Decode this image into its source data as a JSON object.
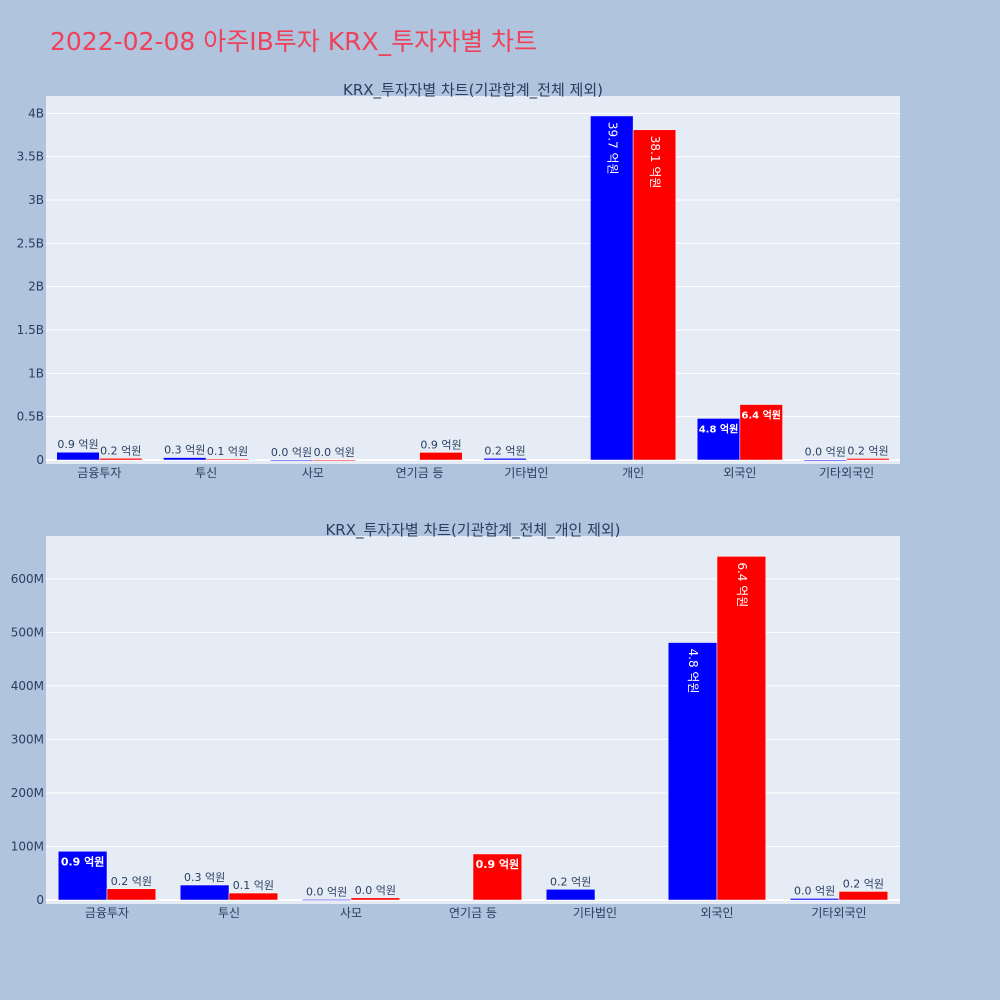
{
  "page": {
    "title": "2022-02-08 아주IB투자 KRX_투자자별 차트"
  },
  "colors": {
    "background": "#b0c4de",
    "plot_bg": "#e5ecf6",
    "series_a": "#0000ff",
    "series_b": "#ff0000",
    "title": "#ef4159"
  },
  "chart_data": [
    {
      "type": "bar",
      "title": "KRX_투자자별 차트(기관합계_전체 제외)",
      "categories": [
        "금융투자",
        "투신",
        "사모",
        "연기금 등",
        "기타법인",
        "개인",
        "외국인",
        "기타외국인"
      ],
      "ylim": [
        0,
        4200000000
      ],
      "yticks": [
        0,
        500000000,
        1000000000,
        1500000000,
        2000000000,
        2500000000,
        3000000000,
        3500000000,
        4000000000
      ],
      "ytick_labels": [
        "0",
        "0.5B",
        "1B",
        "1.5B",
        "2B",
        "2.5B",
        "3B",
        "3.5B",
        "4B"
      ],
      "series": [
        {
          "color": "#0000ff",
          "values": [
            90000000,
            28000000,
            1000000,
            0,
            20000000,
            3970000000,
            480000000,
            3000000
          ],
          "labels": [
            "0.9 억원",
            "0.3 억원",
            "0.0 억원",
            "",
            "0.2 억원",
            "39.7 억원",
            "4.8 억원",
            "0.0 억원"
          ]
        },
        {
          "color": "#ff0000",
          "values": [
            20000000,
            12000000,
            2000000,
            88000000,
            0,
            3810000000,
            640000000,
            18000000
          ],
          "labels": [
            "0.2 억원",
            "0.1 억원",
            "0.0 억원",
            "0.9 억원",
            "",
            "38.1 억원",
            "6.4 억원",
            "0.2 억원"
          ]
        }
      ],
      "grid": true
    },
    {
      "type": "bar",
      "title": "KRX_투자자별 차트(기관합계_전체_개인 제외)",
      "categories": [
        "금융투자",
        "투신",
        "사모",
        "연기금 등",
        "기타법인",
        "외국인",
        "기타외국인"
      ],
      "ylim": [
        0,
        680000000
      ],
      "yticks": [
        0,
        100000000,
        200000000,
        300000000,
        400000000,
        500000000,
        600000000
      ],
      "ytick_labels": [
        "0",
        "100M",
        "200M",
        "300M",
        "400M",
        "500M",
        "600M"
      ],
      "series": [
        {
          "color": "#0000ff",
          "values": [
            91000000,
            28000000,
            1000000,
            0,
            20000000,
            481000000,
            3000000
          ],
          "labels": [
            "0.9 억원",
            "0.3 억원",
            "0.0 억원",
            "",
            "0.2 억원",
            "4.8 억원",
            "0.0 억원"
          ]
        },
        {
          "color": "#ff0000",
          "values": [
            21000000,
            13000000,
            4000000,
            86000000,
            0,
            642000000,
            16000000
          ],
          "labels": [
            "0.2 억원",
            "0.1 억원",
            "0.0 억원",
            "0.9 억원",
            "",
            "6.4 억원",
            "0.2 억원"
          ]
        }
      ],
      "grid": true
    }
  ]
}
